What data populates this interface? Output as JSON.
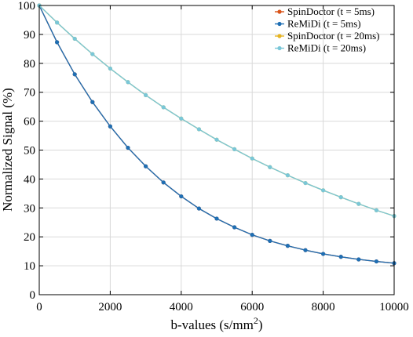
{
  "chart_data": {
    "type": "line",
    "title": "",
    "xlabel": "b-values (s/mm",
    "xlabel_sup": "2",
    "xlabel_close": ")",
    "ylabel": "Normalized Signal (%)",
    "xlim": [
      0,
      10000
    ],
    "ylim": [
      0,
      100
    ],
    "xticks": [
      0,
      2000,
      4000,
      6000,
      8000,
      10000
    ],
    "yticks": [
      0,
      10,
      20,
      30,
      40,
      50,
      60,
      70,
      80,
      90,
      100
    ],
    "grid": true,
    "legend_position": "top-right",
    "x": [
      0,
      500,
      1000,
      1500,
      2000,
      2500,
      3000,
      3500,
      4000,
      4500,
      5000,
      5500,
      6000,
      6500,
      7000,
      7500,
      8000,
      8500,
      9000,
      9500,
      10000
    ],
    "series": [
      {
        "name": "SpinDoctor (t = 5ms)",
        "color": "#d95319",
        "values": [
          100,
          87.3,
          76.2,
          66.6,
          58.2,
          50.8,
          44.4,
          38.8,
          34.0,
          29.8,
          26.3,
          23.3,
          20.7,
          18.6,
          16.9,
          15.4,
          14.1,
          13.1,
          12.2,
          11.5,
          10.9
        ]
      },
      {
        "name": "ReMiDi (t = 5ms)",
        "color": "#1f6fb4",
        "values": [
          100,
          87.3,
          76.2,
          66.6,
          58.2,
          50.8,
          44.4,
          38.8,
          34.0,
          29.8,
          26.3,
          23.3,
          20.7,
          18.6,
          16.9,
          15.4,
          14.1,
          13.1,
          12.2,
          11.5,
          10.9
        ]
      },
      {
        "name": "SpinDoctor (t = 20ms)",
        "color": "#e6b422",
        "values": [
          100,
          94.1,
          88.5,
          83.2,
          78.2,
          73.5,
          69.0,
          64.8,
          60.9,
          57.2,
          53.6,
          50.3,
          47.1,
          44.1,
          41.3,
          38.6,
          36.1,
          33.7,
          31.4,
          29.2,
          27.2
        ]
      },
      {
        "name": "ReMiDi (t = 20ms)",
        "color": "#7ac7d8",
        "values": [
          100,
          94.1,
          88.5,
          83.2,
          78.2,
          73.5,
          69.0,
          64.8,
          60.9,
          57.2,
          53.6,
          50.3,
          47.1,
          44.1,
          41.3,
          38.6,
          36.1,
          33.7,
          31.4,
          29.2,
          27.2
        ]
      }
    ]
  }
}
